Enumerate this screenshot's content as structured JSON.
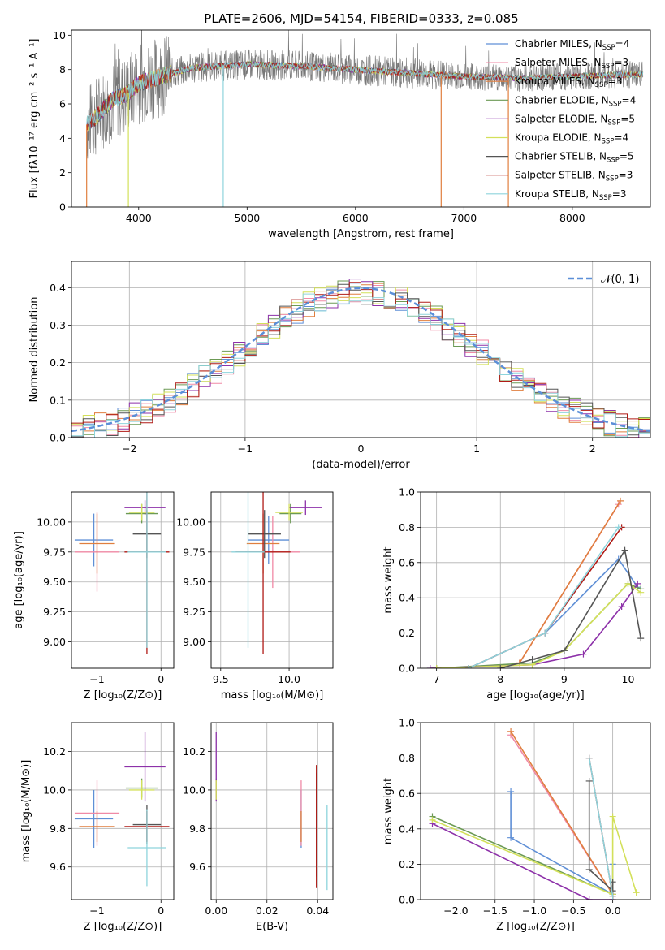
{
  "figure_title": "PLATE=2606, MJD=54154, FIBERID=0333, z=0.085",
  "colors": {
    "Chabrier MILES": "#5f8fd6",
    "Salpeter MILES": "#f08aa6",
    "Kroupa MILES": "#e07f3f",
    "Chabrier ELODIE": "#6c9a55",
    "Salpeter ELODIE": "#8d31a9",
    "Kroupa ELODIE": "#d3e05a",
    "Chabrier STELIB": "#555555",
    "Salpeter STELIB": "#b01b16",
    "Kroupa STELIB": "#8ed4dc",
    "data_gray": "#777777",
    "normal_curve": "#5b8fd8",
    "grid": "#b0b0b0"
  },
  "chart_data": [
    {
      "id": "spectrum",
      "type": "line",
      "xlabel": "wavelength [Angstrom, rest frame]",
      "ylabel": "Flux [fλ10⁻¹⁷ erg cm⁻² s⁻¹ A⁻¹]",
      "xlim": [
        3380,
        8720
      ],
      "ylim": [
        0,
        10.3
      ],
      "xticks": [
        "4000",
        "5000",
        "6000",
        "7000",
        "8000"
      ],
      "yticks": [
        "0",
        "2",
        "4",
        "6",
        "8",
        "10"
      ],
      "legend_location": "top-right",
      "legend": [
        {
          "name": "Chabrier MILES",
          "nssp": "4"
        },
        {
          "name": "Salpeter MILES",
          "nssp": "3"
        },
        {
          "name": "Kroupa MILES",
          "nssp": "3"
        },
        {
          "name": "Chabrier ELODIE",
          "nssp": "4"
        },
        {
          "name": "Salpeter ELODIE",
          "nssp": "5"
        },
        {
          "name": "Kroupa ELODIE",
          "nssp": "4"
        },
        {
          "name": "Chabrier STELIB",
          "nssp": "5"
        },
        {
          "name": "Salpeter STELIB",
          "nssp": "3"
        },
        {
          "name": "Kroupa STELIB",
          "nssp": "3"
        }
      ],
      "continuum": [
        [
          3520,
          4.8
        ],
        [
          3600,
          5.2
        ],
        [
          3750,
          6.2
        ],
        [
          3900,
          6.6
        ],
        [
          4000,
          7.2
        ],
        [
          4200,
          7.6
        ],
        [
          4500,
          8.1
        ],
        [
          5000,
          8.3
        ],
        [
          5500,
          8.2
        ],
        [
          6000,
          8.0
        ],
        [
          6500,
          7.8
        ],
        [
          7000,
          7.6
        ],
        [
          7500,
          7.5
        ],
        [
          8000,
          7.6
        ],
        [
          8500,
          7.7
        ],
        [
          8650,
          7.7
        ]
      ]
    },
    {
      "id": "residuals",
      "type": "histogram",
      "xlabel": "(data-model)/error",
      "ylabel": "Normed distribution",
      "xlim": [
        -2.5,
        2.5
      ],
      "ylim": [
        0,
        0.47
      ],
      "xticks": [
        "−2",
        "−1",
        "0",
        "1",
        "2"
      ],
      "yticks": [
        "0.0",
        "0.1",
        "0.2",
        "0.3",
        "0.4"
      ],
      "legend": "𝒩(0, 1)",
      "legend_location": "top-right",
      "reference_curve": "normal(0,1)"
    },
    {
      "id": "age_vs_Z",
      "type": "errorbar",
      "xlabel": "Z [log₁₀(Z/Z⊙)]",
      "ylabel": "age  [log₁₀(age/yr)]",
      "xlim": [
        -1.4,
        0.2
      ],
      "ylim": [
        8.78,
        10.25
      ],
      "xticks": [
        "−1",
        "0"
      ],
      "yticks": [
        "9.00",
        "9.25",
        "9.50",
        "9.75",
        "10.00"
      ],
      "points": [
        {
          "name": "Chabrier MILES",
          "x": -1.05,
          "xerr": 0.3,
          "y": 9.85,
          "yerr": 0.22
        },
        {
          "name": "Salpeter MILES",
          "x": -1.0,
          "xerr": 0.35,
          "y": 9.75,
          "yerr": 0.33
        },
        {
          "name": "Kroupa MILES",
          "x": -1.0,
          "xerr": 0.28,
          "y": 9.82,
          "yerr": 0.25
        },
        {
          "name": "Chabrier ELODIE",
          "x": -0.3,
          "xerr": 0.25,
          "y": 10.07,
          "yerr": 0.08
        },
        {
          "name": "Salpeter ELODIE",
          "x": -0.25,
          "xerr": 0.32,
          "y": 10.12,
          "yerr": 0.06
        },
        {
          "name": "Kroupa ELODIE",
          "x": -0.3,
          "xerr": 0.2,
          "y": 10.08,
          "yerr": 0.07
        },
        {
          "name": "Chabrier STELIB",
          "x": -0.22,
          "xerr": 0.22,
          "y": 9.9,
          "yerr": 0.2
        },
        {
          "name": "Salpeter STELIB",
          "x": -0.22,
          "xerr": 0.35,
          "y": 9.75,
          "yerr": 0.85
        },
        {
          "name": "Kroupa STELIB",
          "x": -0.22,
          "xerr": 0.3,
          "y": 9.75,
          "yerr": 0.8
        }
      ]
    },
    {
      "id": "age_vs_mass",
      "type": "errorbar",
      "xlabel": "mass [log₁₀(M/M⊙)]",
      "ylabel": "",
      "xlim": [
        9.43,
        10.32
      ],
      "ylim": [
        8.78,
        10.25
      ],
      "xticks": [
        "9.5",
        "10.0"
      ],
      "yticks": [
        "9.00",
        "9.25",
        "9.50",
        "9.75",
        "10.00"
      ],
      "points": [
        {
          "name": "Chabrier MILES",
          "x": 9.85,
          "xerr": 0.15,
          "y": 9.85,
          "yerr": 0.2
        },
        {
          "name": "Salpeter MILES",
          "x": 9.88,
          "xerr": 0.2,
          "y": 9.75,
          "yerr": 0.3
        },
        {
          "name": "Kroupa MILES",
          "x": 9.81,
          "xerr": 0.12,
          "y": 9.82,
          "yerr": 0.25
        },
        {
          "name": "Chabrier ELODIE",
          "x": 10.01,
          "xerr": 0.08,
          "y": 10.07,
          "yerr": 0.08
        },
        {
          "name": "Salpeter ELODIE",
          "x": 10.12,
          "xerr": 0.12,
          "y": 10.12,
          "yerr": 0.06
        },
        {
          "name": "Kroupa ELODIE",
          "x": 10.0,
          "xerr": 0.1,
          "y": 10.08,
          "yerr": 0.07
        },
        {
          "name": "Chabrier STELIB",
          "x": 9.82,
          "xerr": 0.12,
          "y": 9.9,
          "yerr": 0.2
        },
        {
          "name": "Salpeter STELIB",
          "x": 9.81,
          "xerr": 0.2,
          "y": 9.75,
          "yerr": 0.85
        },
        {
          "name": "Kroupa STELIB",
          "x": 9.7,
          "xerr": 0.12,
          "y": 9.75,
          "yerr": 0.8
        }
      ]
    },
    {
      "id": "massweight_vs_age",
      "type": "line",
      "xlabel": "age  [log₁₀(age/yr)]",
      "ylabel": "mass weight",
      "xlim": [
        6.75,
        10.35
      ],
      "ylim": [
        0,
        1
      ],
      "xticks": [
        "7",
        "8",
        "9",
        "10"
      ],
      "yticks": [
        "0.0",
        "0.2",
        "0.4",
        "0.6",
        "0.8",
        "1.0"
      ],
      "series": [
        {
          "name": "Chabrier MILES",
          "x": [
            7.5,
            8.7,
            9.85,
            10.15
          ],
          "y": [
            0.0,
            0.2,
            0.62,
            0.46
          ]
        },
        {
          "name": "Salpeter MILES",
          "x": [
            8.3,
            9.85
          ],
          "y": [
            0.03,
            0.93
          ]
        },
        {
          "name": "Kroupa MILES",
          "x": [
            8.3,
            9.88
          ],
          "y": [
            0.03,
            0.95
          ]
        },
        {
          "name": "Chabrier ELODIE",
          "x": [
            7.0,
            8.5,
            9.0,
            10.0,
            10.2
          ],
          "y": [
            0.0,
            0.03,
            0.1,
            0.48,
            0.45
          ]
        },
        {
          "name": "Salpeter ELODIE",
          "x": [
            6.9,
            8.5,
            9.3,
            9.9,
            10.15
          ],
          "y": [
            0.0,
            0.02,
            0.08,
            0.35,
            0.48
          ]
        },
        {
          "name": "Kroupa ELODIE",
          "x": [
            7.0,
            8.5,
            9.0,
            10.0,
            10.2
          ],
          "y": [
            0.0,
            0.02,
            0.1,
            0.48,
            0.43
          ]
        },
        {
          "name": "Chabrier STELIB",
          "x": [
            8.0,
            8.5,
            9.0,
            9.95,
            10.2
          ],
          "y": [
            0.0,
            0.05,
            0.1,
            0.67,
            0.17
          ]
        },
        {
          "name": "Salpeter STELIB",
          "x": [
            7.5,
            8.7,
            9.9
          ],
          "y": [
            0.0,
            0.2,
            0.8
          ]
        },
        {
          "name": "Kroupa STELIB",
          "x": [
            7.5,
            8.7,
            9.85
          ],
          "y": [
            0.0,
            0.2,
            0.8
          ]
        }
      ]
    },
    {
      "id": "mass_vs_Z",
      "type": "errorbar",
      "xlabel": "Z [log₁₀(Z/Z⊙)]",
      "ylabel": "mass [log₁₀(M/M⊙)]",
      "xlim": [
        -1.4,
        0.2
      ],
      "ylim": [
        9.43,
        10.35
      ],
      "xticks": [
        "−1",
        "0"
      ],
      "yticks": [
        "9.6",
        "9.8",
        "10.0",
        "10.2"
      ],
      "points": [
        {
          "name": "Chabrier MILES",
          "x": -1.05,
          "xerr": 0.3,
          "y": 9.85,
          "yerr": 0.15
        },
        {
          "name": "Salpeter MILES",
          "x": -1.0,
          "xerr": 0.35,
          "y": 9.88,
          "yerr": 0.17
        },
        {
          "name": "Kroupa MILES",
          "x": -1.0,
          "xerr": 0.28,
          "y": 9.81,
          "yerr": 0.08
        },
        {
          "name": "Chabrier ELODIE",
          "x": -0.3,
          "xerr": 0.25,
          "y": 10.01,
          "yerr": 0.05
        },
        {
          "name": "Salpeter ELODIE",
          "x": -0.25,
          "xerr": 0.32,
          "y": 10.12,
          "yerr": 0.18
        },
        {
          "name": "Kroupa ELODIE",
          "x": -0.3,
          "xerr": 0.2,
          "y": 10.0,
          "yerr": 0.05
        },
        {
          "name": "Chabrier STELIB",
          "x": -0.22,
          "xerr": 0.22,
          "y": 9.82,
          "yerr": 0.1
        },
        {
          "name": "Salpeter STELIB",
          "x": -0.22,
          "xerr": 0.35,
          "y": 9.81,
          "yerr": 0.08
        },
        {
          "name": "Kroupa STELIB",
          "x": -0.22,
          "xerr": 0.3,
          "y": 9.7,
          "yerr": 0.2
        }
      ]
    },
    {
      "id": "mass_vs_ebv",
      "type": "errorbar",
      "xlabel": "E(B-V)",
      "ylabel": "",
      "xlim": [
        -0.002,
        0.046
      ],
      "ylim": [
        9.43,
        10.35
      ],
      "xticks": [
        "0.00",
        "0.02",
        "0.04"
      ],
      "yticks": [
        "9.6",
        "9.8",
        "10.0",
        "10.2"
      ],
      "points": [
        {
          "name": "Chabrier MILES",
          "x": 0.0335,
          "y": 9.85,
          "yerr": 0.15
        },
        {
          "name": "Salpeter MILES",
          "x": 0.0335,
          "y": 9.88,
          "yerr": 0.17
        },
        {
          "name": "Kroupa MILES",
          "x": 0.0335,
          "y": 9.81,
          "yerr": 0.08
        },
        {
          "name": "Chabrier ELODIE",
          "x": 0.0,
          "y": 10.01,
          "yerr": 0.05
        },
        {
          "name": "Salpeter ELODIE",
          "x": 0.0,
          "y": 10.12,
          "yerr": 0.18
        },
        {
          "name": "Kroupa ELODIE",
          "x": 0.0,
          "y": 10.0,
          "yerr": 0.05
        },
        {
          "name": "Chabrier STELIB",
          "x": 0.0395,
          "y": 9.82,
          "yerr": 0.27
        },
        {
          "name": "Salpeter STELIB",
          "x": 0.0395,
          "y": 9.81,
          "yerr": 0.32
        },
        {
          "name": "Kroupa STELIB",
          "x": 0.0437,
          "y": 9.7,
          "yerr": 0.22
        }
      ]
    },
    {
      "id": "massweight_vs_Z",
      "type": "line",
      "xlabel": "Z [log₁₀(Z/Z⊙)]",
      "ylabel": "mass weight",
      "xlim": [
        -2.45,
        0.48
      ],
      "ylim": [
        0,
        1
      ],
      "xticks": [
        "−2.0",
        "−1.5",
        "−1.0",
        "−0.5",
        "0.0"
      ],
      "yticks": [
        "0.0",
        "0.2",
        "0.4",
        "0.6",
        "0.8",
        "1.0"
      ],
      "series": [
        {
          "name": "Chabrier MILES",
          "x": [
            -1.3,
            -1.3,
            0.0,
            0.0
          ],
          "y": [
            0.61,
            0.35,
            0.03,
            0.2
          ]
        },
        {
          "name": "Salpeter MILES",
          "x": [
            -1.3,
            0.0
          ],
          "y": [
            0.93,
            0.03
          ]
        },
        {
          "name": "Kroupa MILES",
          "x": [
            -1.3,
            0.0
          ],
          "y": [
            0.95,
            0.03
          ]
        },
        {
          "name": "Chabrier ELODIE",
          "x": [
            -2.3,
            0.0
          ],
          "y": [
            0.47,
            0.03
          ]
        },
        {
          "name": "Salpeter ELODIE",
          "x": [
            -2.3,
            -0.3,
            0.0
          ],
          "y": [
            0.43,
            0.0,
            0.0
          ]
        },
        {
          "name": "Kroupa ELODIE",
          "x": [
            -2.3,
            0.0,
            0.0,
            0.3
          ],
          "y": [
            0.45,
            0.03,
            0.47,
            0.04
          ]
        },
        {
          "name": "Chabrier STELIB",
          "x": [
            -0.3,
            -0.3,
            0.0,
            0.0
          ],
          "y": [
            0.67,
            0.17,
            0.05,
            0.1
          ]
        },
        {
          "name": "Salpeter STELIB",
          "x": [
            -0.3,
            0.0
          ],
          "y": [
            0.8,
            0.02
          ]
        },
        {
          "name": "Kroupa STELIB",
          "x": [
            -0.3,
            0.0
          ],
          "y": [
            0.8,
            0.02
          ]
        }
      ]
    }
  ]
}
